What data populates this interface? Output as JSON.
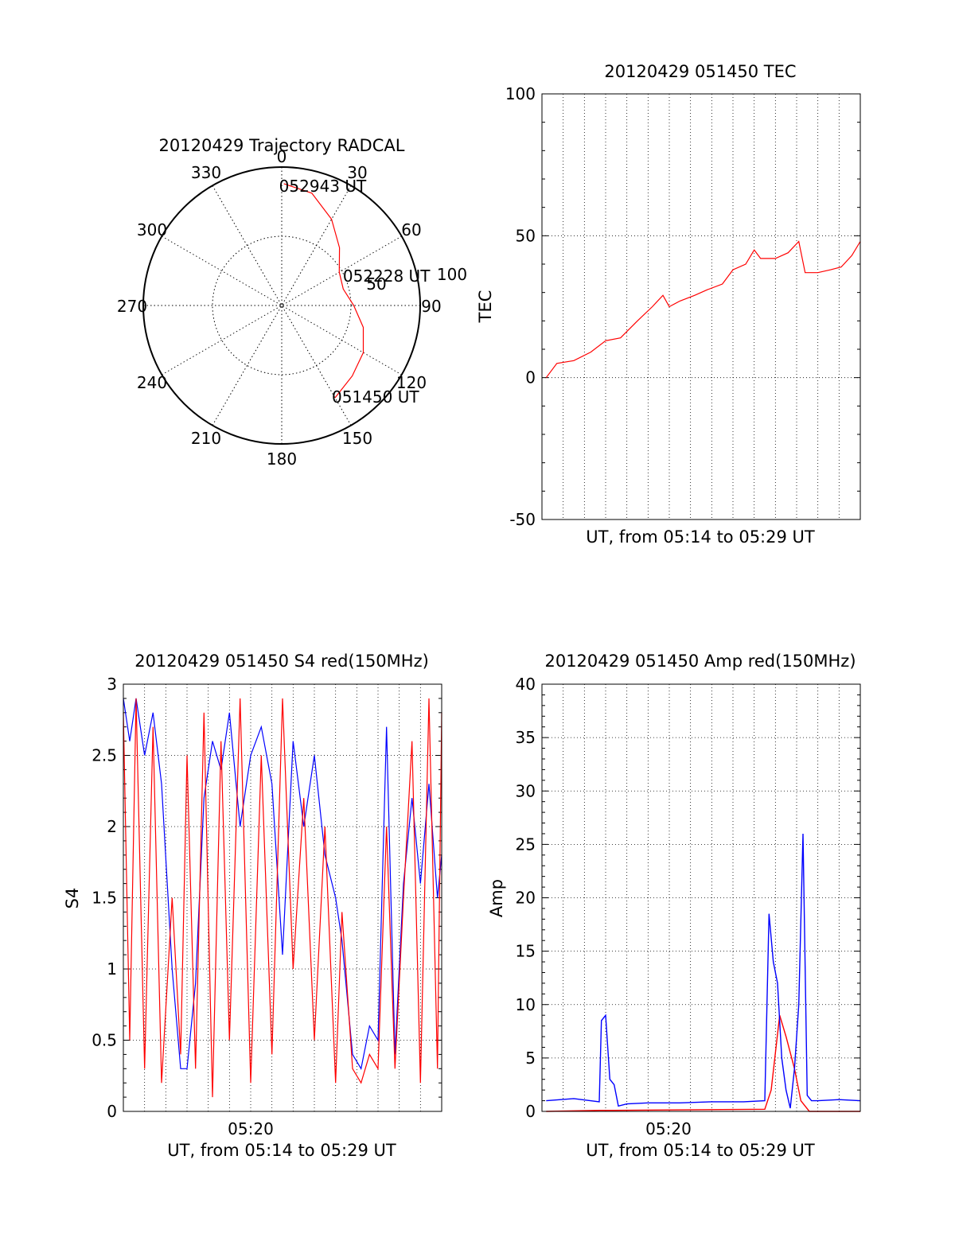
{
  "chart_data": [
    {
      "id": "trajectory",
      "type": "polar",
      "title": "20120429 Trajectory RADCAL",
      "angle_labels": [
        "0",
        "30",
        "60",
        "90",
        "120",
        "150",
        "180",
        "210",
        "240",
        "270",
        "300",
        "330"
      ],
      "radial_labels": [
        "50",
        "100"
      ],
      "rlim": [
        0,
        100
      ],
      "grid": true,
      "trajectory": {
        "color": "#ff0000",
        "points": [
          {
            "az": 150,
            "r": 77
          },
          {
            "az": 135,
            "r": 72
          },
          {
            "az": 120,
            "r": 68
          },
          {
            "az": 105,
            "r": 61
          },
          {
            "az": 90,
            "r": 52
          },
          {
            "az": 75,
            "r": 46
          },
          {
            "az": 60,
            "r": 48
          },
          {
            "az": 45,
            "r": 59
          },
          {
            "az": 30,
            "r": 72
          },
          {
            "az": 15,
            "r": 84
          },
          {
            "az": 1,
            "r": 88
          }
        ]
      },
      "annotations": [
        {
          "text": "052943 UT",
          "az": 1,
          "r": 88
        },
        {
          "text": "052228 UT",
          "az": 70,
          "r": 47
        },
        {
          "text": "051450 UT",
          "az": 150,
          "r": 77
        }
      ]
    },
    {
      "id": "tec",
      "type": "line",
      "title": "20120429 051450 TEC",
      "xlabel": "UT, from 05:14 to 05:29 UT",
      "ylabel": "TEC",
      "xlim": [
        0,
        15
      ],
      "ylim": [
        -50,
        100
      ],
      "yticks": [
        "100",
        "50",
        "0",
        "-50"
      ],
      "grid": true,
      "series": [
        {
          "color": "#ff0000",
          "x": [
            0.2,
            0.7,
            1.5,
            2.3,
            3.0,
            3.7,
            4.5,
            5.2,
            5.7,
            6.0,
            6.5,
            7.2,
            7.8,
            8.5,
            9.0,
            9.6,
            10.0,
            10.3,
            11.0,
            11.6,
            12.1,
            12.4,
            13.0,
            13.6,
            14.1,
            14.6,
            15.0
          ],
          "y": [
            0,
            5,
            6,
            9,
            13,
            14,
            20,
            25,
            29,
            25,
            27,
            29,
            31,
            33,
            38,
            40,
            45,
            42,
            42,
            44,
            48,
            37,
            37,
            38,
            39,
            43,
            48
          ]
        }
      ]
    },
    {
      "id": "s4",
      "type": "line",
      "title": "20120429 051450 S4 red(150MHz)",
      "xlabel": "UT, from 05:14 to 05:29 UT",
      "xtick_label": "05:20",
      "ylabel": "S4",
      "xlim": [
        0,
        15
      ],
      "ylim": [
        0,
        3
      ],
      "yticks": [
        "3",
        "2.5",
        "2",
        "1.5",
        "1",
        "0.5",
        "0"
      ],
      "grid": true,
      "series": [
        {
          "color": "#0000ff",
          "x": [
            0.0,
            0.3,
            0.6,
            1.0,
            1.4,
            1.8,
            2.3,
            2.7,
            3.0,
            3.4,
            3.8,
            4.2,
            4.6,
            5.0,
            5.5,
            6.0,
            6.5,
            7.0,
            7.5,
            8.0,
            8.5,
            9.0,
            9.5,
            10.0,
            10.3,
            10.8,
            11.2,
            11.6,
            12.0,
            12.4,
            12.8,
            13.2,
            13.6,
            14.0,
            14.4,
            14.8,
            15.0
          ],
          "y": [
            2.9,
            2.6,
            2.9,
            2.5,
            2.8,
            2.3,
            1.0,
            0.3,
            0.3,
            0.9,
            2.2,
            2.6,
            2.4,
            2.8,
            2.0,
            2.5,
            2.7,
            2.3,
            1.1,
            2.6,
            2.0,
            2.5,
            1.8,
            1.5,
            1.2,
            0.4,
            0.3,
            0.6,
            0.5,
            2.7,
            0.4,
            1.6,
            2.2,
            1.6,
            2.3,
            1.5,
            1.8
          ]
        },
        {
          "color": "#ff0000",
          "x": [
            0.0,
            0.3,
            0.6,
            1.0,
            1.4,
            1.8,
            2.3,
            2.7,
            3.0,
            3.4,
            3.8,
            4.2,
            4.6,
            5.0,
            5.5,
            6.0,
            6.5,
            7.0,
            7.5,
            8.0,
            8.5,
            9.0,
            9.5,
            10.0,
            10.3,
            10.8,
            11.2,
            11.6,
            12.0,
            12.4,
            12.8,
            13.2,
            13.6,
            14.0,
            14.4,
            14.8,
            15.0
          ],
          "y": [
            2.8,
            0.5,
            2.9,
            0.3,
            2.7,
            0.2,
            1.5,
            0.4,
            2.5,
            0.3,
            2.8,
            0.1,
            2.6,
            0.5,
            2.9,
            0.2,
            2.5,
            0.4,
            2.9,
            1.0,
            2.2,
            0.5,
            2.0,
            0.2,
            1.4,
            0.3,
            0.2,
            0.4,
            0.3,
            2.0,
            0.3,
            1.5,
            2.6,
            0.2,
            2.9,
            0.3,
            2.8
          ]
        }
      ]
    },
    {
      "id": "amp",
      "type": "line",
      "title": "20120429 051450 Amp red(150MHz)",
      "xlabel": "UT, from 05:14 to 05:29 UT",
      "xtick_label": "05:20",
      "ylabel": "Amp",
      "xlim": [
        0,
        15
      ],
      "ylim": [
        0,
        40
      ],
      "yticks": [
        "40",
        "35",
        "30",
        "25",
        "20",
        "15",
        "10",
        "5",
        "0"
      ],
      "grid": true,
      "series": [
        {
          "color": "#ff0000",
          "x": [
            0.2,
            2.7,
            3.4,
            10.5,
            10.8,
            11.2,
            11.5,
            11.9,
            12.2,
            12.6,
            15.0
          ],
          "y": [
            0.0,
            0.1,
            0.1,
            0.2,
            2.0,
            9.0,
            7.0,
            4.0,
            1.0,
            0.0,
            0.0
          ]
        },
        {
          "color": "#0000ff",
          "x": [
            0.2,
            1.5,
            2.7,
            2.8,
            3.0,
            3.2,
            3.4,
            3.6,
            4.0,
            5.0,
            6.5,
            8.0,
            9.5,
            10.5,
            10.7,
            10.9,
            11.1,
            11.3,
            11.5,
            11.7,
            11.9,
            12.1,
            12.3,
            12.5,
            12.7,
            13.0,
            14.0,
            15.0
          ],
          "y": [
            1.0,
            1.2,
            0.9,
            8.5,
            9.0,
            3.0,
            2.5,
            0.5,
            0.7,
            0.8,
            0.8,
            0.9,
            0.9,
            1.0,
            18.5,
            14.0,
            12.0,
            5.0,
            2.0,
            0.3,
            4.0,
            10.0,
            26.0,
            1.5,
            1.0,
            1.0,
            1.1,
            1.0
          ]
        }
      ]
    }
  ]
}
